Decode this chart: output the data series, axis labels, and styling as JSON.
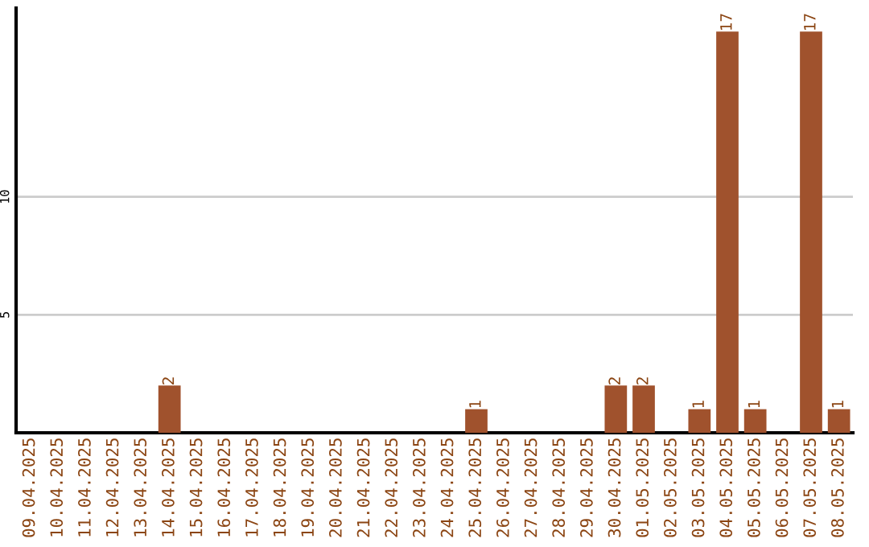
{
  "chart_data": {
    "type": "bar",
    "categories": [
      "09.04.2025",
      "10.04.2025",
      "11.04.2025",
      "12.04.2025",
      "13.04.2025",
      "14.04.2025",
      "15.04.2025",
      "16.04.2025",
      "17.04.2025",
      "18.04.2025",
      "19.04.2025",
      "20.04.2025",
      "21.04.2025",
      "22.04.2025",
      "23.04.2025",
      "24.04.2025",
      "25.04.2025",
      "26.04.2025",
      "27.04.2025",
      "28.04.2025",
      "29.04.2025",
      "30.04.2025",
      "01.05.2025",
      "02.05.2025",
      "03.05.2025",
      "04.05.2025",
      "05.05.2025",
      "06.05.2025",
      "07.05.2025",
      "08.05.2025"
    ],
    "values": [
      0,
      0,
      0,
      0,
      0,
      2,
      0,
      0,
      0,
      0,
      0,
      0,
      0,
      0,
      0,
      0,
      1,
      0,
      0,
      0,
      0,
      2,
      2,
      0,
      1,
      17,
      1,
      0,
      17,
      1
    ],
    "value_labels": [
      null,
      null,
      null,
      null,
      null,
      "2",
      null,
      null,
      null,
      null,
      null,
      null,
      null,
      null,
      null,
      null,
      "1",
      null,
      null,
      null,
      null,
      "2",
      "2",
      null,
      "1",
      "17",
      "1",
      null,
      "17",
      "1"
    ],
    "color": "#a0522d",
    "ylim": [
      0,
      18
    ],
    "yticks": [
      5,
      10
    ],
    "grid": "y"
  }
}
